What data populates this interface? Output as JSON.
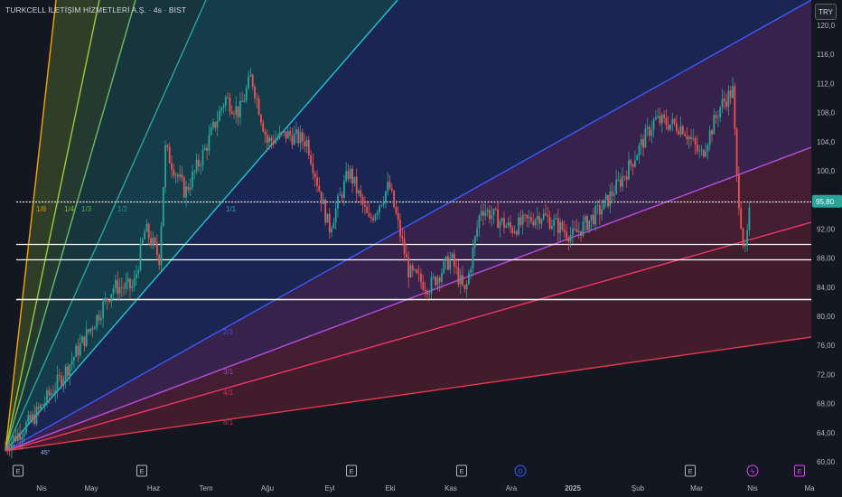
{
  "title": "TURKCELL İLETİŞİM HİZMETLERİ A.Ş. · 4s · BIST",
  "currency": "TRY",
  "colors": {
    "background": "#131722",
    "bull": "#26a69a",
    "bear": "#ef5350",
    "price_label_bg": "#26a69a",
    "axis_text": "#b2b5be"
  },
  "chart_data": {
    "type": "candlestick",
    "x_ticks": [
      "Nis",
      "May",
      "Haz",
      "Tem",
      "Ağu",
      "Eyl",
      "Eki",
      "Kas",
      "Ara",
      "2025",
      "Şub",
      "Mar",
      "Nis",
      "Ma"
    ],
    "y_ticks": [
      "120,0",
      "116,0",
      "112,0",
      "108,0",
      "104,0",
      "100,0",
      "95,80",
      "92,00",
      "88,00",
      "84,00",
      "80,00",
      "76,00",
      "72,00",
      "68,00",
      "64,00",
      "60,00"
    ],
    "ylim": [
      60,
      121.5
    ],
    "last_price": 95.8,
    "last_price_label": "95,80",
    "horizontal_levels": [
      95.8,
      90.0,
      87.8,
      82.3
    ],
    "gann_fan": {
      "origin": {
        "date": "2024-03-27",
        "price": 61.5
      },
      "lines": [
        {
          "label": "1/8",
          "color": "#f7a600"
        },
        {
          "label": "1/4",
          "color": "#9ccc3c"
        },
        {
          "label": "1/3",
          "color": "#66bb6a"
        },
        {
          "label": "1/2",
          "color": "#26a69a"
        },
        {
          "label": "1/1",
          "color": "#22c3d9"
        },
        {
          "label": "2/1",
          "color": "#3d5afe"
        },
        {
          "label": "3/1",
          "color": "#b84ee0"
        },
        {
          "label": "4/1",
          "color": "#f23668"
        },
        {
          "label": "8/1",
          "color": "#e8384f"
        }
      ],
      "angle_label": "45°"
    },
    "price_path": [
      {
        "date": "2024-03-27",
        "price": 62
      },
      {
        "date": "2024-04-10",
        "price": 66
      },
      {
        "date": "2024-04-25",
        "price": 72
      },
      {
        "date": "2024-05-10",
        "price": 79
      },
      {
        "date": "2024-05-20",
        "price": 84
      },
      {
        "date": "2024-05-30",
        "price": 84
      },
      {
        "date": "2024-06-05",
        "price": 92
      },
      {
        "date": "2024-06-12",
        "price": 88
      },
      {
        "date": "2024-06-15",
        "price": 103
      },
      {
        "date": "2024-06-25",
        "price": 97
      },
      {
        "date": "2024-07-05",
        "price": 103
      },
      {
        "date": "2024-07-15",
        "price": 110
      },
      {
        "date": "2024-07-22",
        "price": 108
      },
      {
        "date": "2024-07-28",
        "price": 113
      },
      {
        "date": "2024-08-05",
        "price": 104
      },
      {
        "date": "2024-08-15",
        "price": 105
      },
      {
        "date": "2024-08-25",
        "price": 104
      },
      {
        "date": "2024-09-05",
        "price": 92
      },
      {
        "date": "2024-09-15",
        "price": 100
      },
      {
        "date": "2024-09-25",
        "price": 93
      },
      {
        "date": "2024-10-05",
        "price": 98
      },
      {
        "date": "2024-10-15",
        "price": 86
      },
      {
        "date": "2024-10-25",
        "price": 84
      },
      {
        "date": "2024-11-05",
        "price": 88
      },
      {
        "date": "2024-11-12",
        "price": 83
      },
      {
        "date": "2024-11-20",
        "price": 95
      },
      {
        "date": "2024-12-05",
        "price": 92
      },
      {
        "date": "2024-12-20",
        "price": 94
      },
      {
        "date": "2025-01-05",
        "price": 91
      },
      {
        "date": "2025-01-20",
        "price": 95
      },
      {
        "date": "2025-02-01",
        "price": 100
      },
      {
        "date": "2025-02-15",
        "price": 107
      },
      {
        "date": "2025-03-01",
        "price": 106
      },
      {
        "date": "2025-03-10",
        "price": 102
      },
      {
        "date": "2025-03-20",
        "price": 109
      },
      {
        "date": "2025-03-26",
        "price": 111
      },
      {
        "date": "2025-03-28",
        "price": 99
      },
      {
        "date": "2025-04-01",
        "price": 88
      },
      {
        "date": "2025-04-04",
        "price": 95.8
      }
    ],
    "event_markers": [
      {
        "date": "2024-03-27",
        "label": "E",
        "color": "#b2b5be"
      },
      {
        "date": "2024-06-10",
        "label": "E",
        "color": "#b2b5be"
      },
      {
        "date": "2024-09-20",
        "label": "E",
        "color": "#b2b5be"
      },
      {
        "date": "2024-11-20",
        "label": "E",
        "color": "#b2b5be"
      },
      {
        "date": "2024-12-15",
        "label": "D",
        "color": "#2962ff"
      },
      {
        "date": "2025-02-25",
        "label": "E",
        "color": "#b2b5be"
      },
      {
        "date": "2025-03-30",
        "label": "ϟ",
        "color": "#e040fb"
      },
      {
        "date": "2025-04-28",
        "label": "E",
        "color": "#e040fb"
      }
    ]
  }
}
